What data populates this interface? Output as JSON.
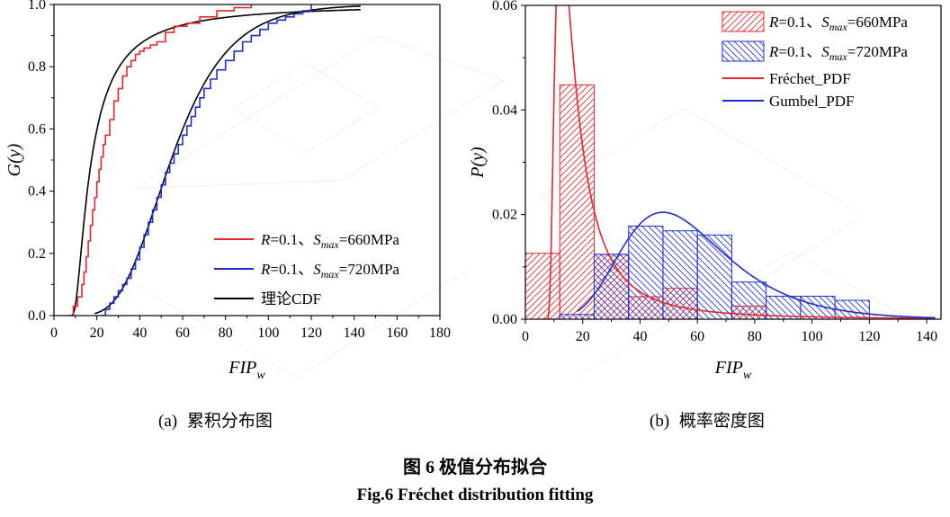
{
  "chart_data": [
    {
      "type": "line",
      "panel": "(a)",
      "xlabel": "FIP",
      "xlabel_sub": "w",
      "ylabel": "G(y)",
      "xlim": [
        0,
        180
      ],
      "ylim": [
        0,
        1.0
      ],
      "xticks": [
        0,
        20,
        40,
        60,
        80,
        100,
        120,
        140,
        160,
        180
      ],
      "yticks": [
        0.0,
        0.2,
        0.4,
        0.6,
        0.8,
        1.0
      ],
      "legend_position": "bottom-right",
      "legend": [
        {
          "pre": "",
          "var1": "R",
          "mid": "=0.1、",
          "var2": "S",
          "sub": "max",
          "post": "=660MPa",
          "color": "#e8262b"
        },
        {
          "pre": "",
          "var1": "R",
          "mid": "=0.1、",
          "var2": "S",
          "sub": "max",
          "post": "=720MPa",
          "color": "#1f2fd6"
        },
        {
          "pre": "理论CDF",
          "var1": "",
          "mid": "",
          "var2": "",
          "sub": "",
          "post": "",
          "color": "#000000"
        }
      ],
      "series": [
        {
          "name": "R=0.1、Smax=660MPa",
          "color": "#e8262b",
          "kind": "step",
          "x": [
            7,
            9,
            11,
            13,
            14,
            15,
            16,
            17,
            18,
            19,
            20,
            21,
            22,
            23,
            24,
            26,
            28,
            30,
            32,
            34,
            36,
            38,
            40,
            42,
            45,
            48,
            52,
            56,
            62,
            68,
            76,
            84,
            92
          ],
          "y": [
            0.0,
            0.03,
            0.06,
            0.1,
            0.14,
            0.19,
            0.24,
            0.29,
            0.34,
            0.38,
            0.43,
            0.47,
            0.51,
            0.55,
            0.58,
            0.63,
            0.69,
            0.73,
            0.77,
            0.8,
            0.82,
            0.84,
            0.85,
            0.86,
            0.87,
            0.88,
            0.91,
            0.93,
            0.94,
            0.96,
            0.98,
            0.99,
            1.0
          ]
        },
        {
          "name": "R=0.1、Smax=720MPa",
          "color": "#1f2fd6",
          "kind": "step",
          "x": [
            22,
            24,
            26,
            28,
            30,
            32,
            34,
            36,
            38,
            40,
            42,
            44,
            46,
            48,
            50,
            52,
            54,
            56,
            58,
            60,
            62,
            64,
            66,
            68,
            70,
            73,
            76,
            80,
            84,
            88,
            92,
            96,
            100,
            104,
            108,
            112,
            116,
            120
          ],
          "y": [
            0.0,
            0.02,
            0.04,
            0.06,
            0.08,
            0.1,
            0.12,
            0.15,
            0.18,
            0.22,
            0.26,
            0.3,
            0.34,
            0.38,
            0.42,
            0.46,
            0.49,
            0.52,
            0.55,
            0.58,
            0.61,
            0.64,
            0.67,
            0.7,
            0.73,
            0.76,
            0.79,
            0.82,
            0.85,
            0.88,
            0.9,
            0.92,
            0.94,
            0.95,
            0.96,
            0.97,
            0.98,
            1.0
          ]
        }
      ],
      "theoretical_cdf": {
        "color": "#000000",
        "frechet": {
          "loc": 6,
          "scale": 9,
          "shape": 1.5
        },
        "gumbel": {
          "mu": 48,
          "beta": 18
        },
        "x_range_1": [
          7,
          143
        ],
        "x_range_2": [
          19,
          143
        ]
      }
    },
    {
      "type": "bar",
      "panel": "(b)",
      "xlabel": "FIP",
      "xlabel_sub": "w",
      "ylabel": "P(y)",
      "xlim": [
        0,
        145
      ],
      "ylim": [
        0,
        0.06
      ],
      "xticks": [
        0,
        20,
        40,
        60,
        80,
        100,
        120,
        140
      ],
      "yticks": [
        0.0,
        0.02,
        0.04,
        0.06
      ],
      "ytick_labels": [
        "0.00",
        "0.02",
        "0.04",
        "0.06"
      ],
      "legend_position": "top-right",
      "legend": [
        {
          "pre": "",
          "var1": "R",
          "mid": "=0.1、",
          "var2": "S",
          "sub": "max",
          "post": "=660MPa",
          "color": "#e8262b"
        },
        {
          "pre": "",
          "var1": "R",
          "mid": "=0.1、",
          "var2": "S",
          "sub": "max",
          "post": "=720MPa",
          "color": "#1f2fd6"
        },
        {
          "pre": "Fréchet_PDF",
          "var1": "",
          "mid": "",
          "var2": "",
          "sub": "",
          "post": "",
          "color": "#e8262b"
        },
        {
          "pre": "Gumbel_PDF",
          "var1": "",
          "mid": "",
          "var2": "",
          "sub": "",
          "post": "",
          "color": "#1f2fd6"
        }
      ],
      "histograms": [
        {
          "name": "R=0.1、Smax=660MPa",
          "color": "#e8262b",
          "hatch": "up",
          "bins": [
            [
              0,
              12,
              0.0126
            ],
            [
              12,
              24,
              0.0448
            ],
            [
              24,
              36,
              0.0124
            ],
            [
              36,
              48,
              0.0043
            ],
            [
              48,
              60,
              0.0059
            ],
            [
              60,
              72,
              0.0
            ],
            [
              72,
              84,
              0.0025
            ],
            [
              84,
              96,
              0.0
            ],
            [
              96,
              108,
              0.0
            ],
            [
              108,
              120,
              0.0
            ]
          ]
        },
        {
          "name": "R=0.1、Smax=720MPa",
          "color": "#1f2fd6",
          "hatch": "down",
          "bins": [
            [
              12,
              24,
              0.0009
            ],
            [
              24,
              36,
              0.0124
            ],
            [
              36,
              48,
              0.0178
            ],
            [
              48,
              60,
              0.0169
            ],
            [
              60,
              72,
              0.0161
            ],
            [
              72,
              84,
              0.0071
            ],
            [
              84,
              96,
              0.0044
            ],
            [
              96,
              108,
              0.0044
            ],
            [
              108,
              120,
              0.0036
            ]
          ]
        }
      ],
      "pdf_curves": [
        {
          "name": "Fréchet_PDF",
          "color": "#e8262b",
          "dist": "frechet",
          "loc": 6,
          "scale": 9,
          "shape": 1.5,
          "x_range": [
            6,
            143
          ]
        },
        {
          "name": "Gumbel_PDF",
          "color": "#1f2fd6",
          "dist": "gumbel",
          "mu": 48,
          "beta": 18,
          "x_range": [
            18,
            143
          ]
        }
      ]
    }
  ],
  "captions": {
    "sub_a_label": "(a)",
    "sub_a_text": "累积分布图",
    "sub_b_label": "(b)",
    "sub_b_text": "概率密度图",
    "fig_cn": "图 6 极值分布拟合",
    "fig_en": "Fig.6 Fréchet distribution fitting"
  }
}
